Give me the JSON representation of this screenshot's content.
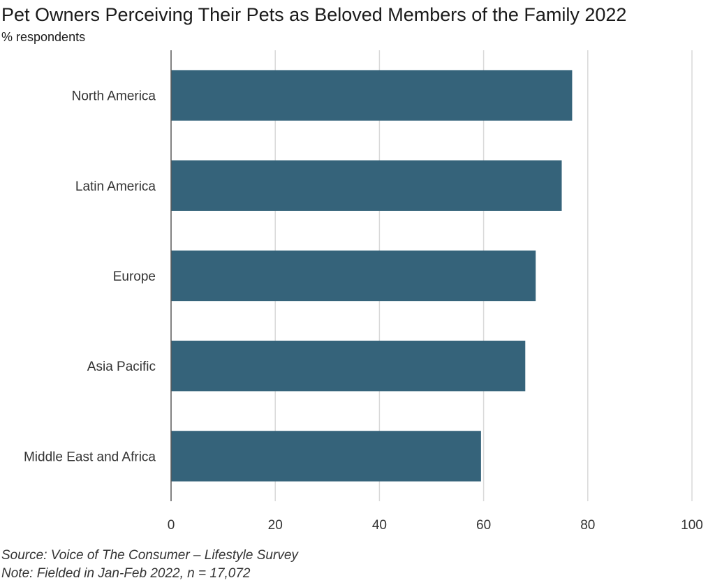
{
  "chart_data": {
    "type": "bar",
    "orientation": "horizontal",
    "title": "Pet Owners Perceiving Their Pets as Beloved Members of the Family 2022",
    "subtitle": "% respondents",
    "categories": [
      "North America",
      "Latin America",
      "Europe",
      "Asia Pacific",
      "Middle East and Africa"
    ],
    "values": [
      77,
      75,
      70,
      68,
      59.5
    ],
    "xlim": [
      0,
      100
    ],
    "xticks": [
      0,
      20,
      40,
      60,
      80,
      100
    ],
    "grid": true,
    "legend": "none",
    "bar_color": "#35637a",
    "grid_color": "#d9d9d9",
    "axis_color": "#595959"
  },
  "footer": {
    "source": "Source: Voice of The Consumer – Lifestyle Survey",
    "note": "Note: Fielded in Jan-Feb 2022, n = 17,072"
  }
}
